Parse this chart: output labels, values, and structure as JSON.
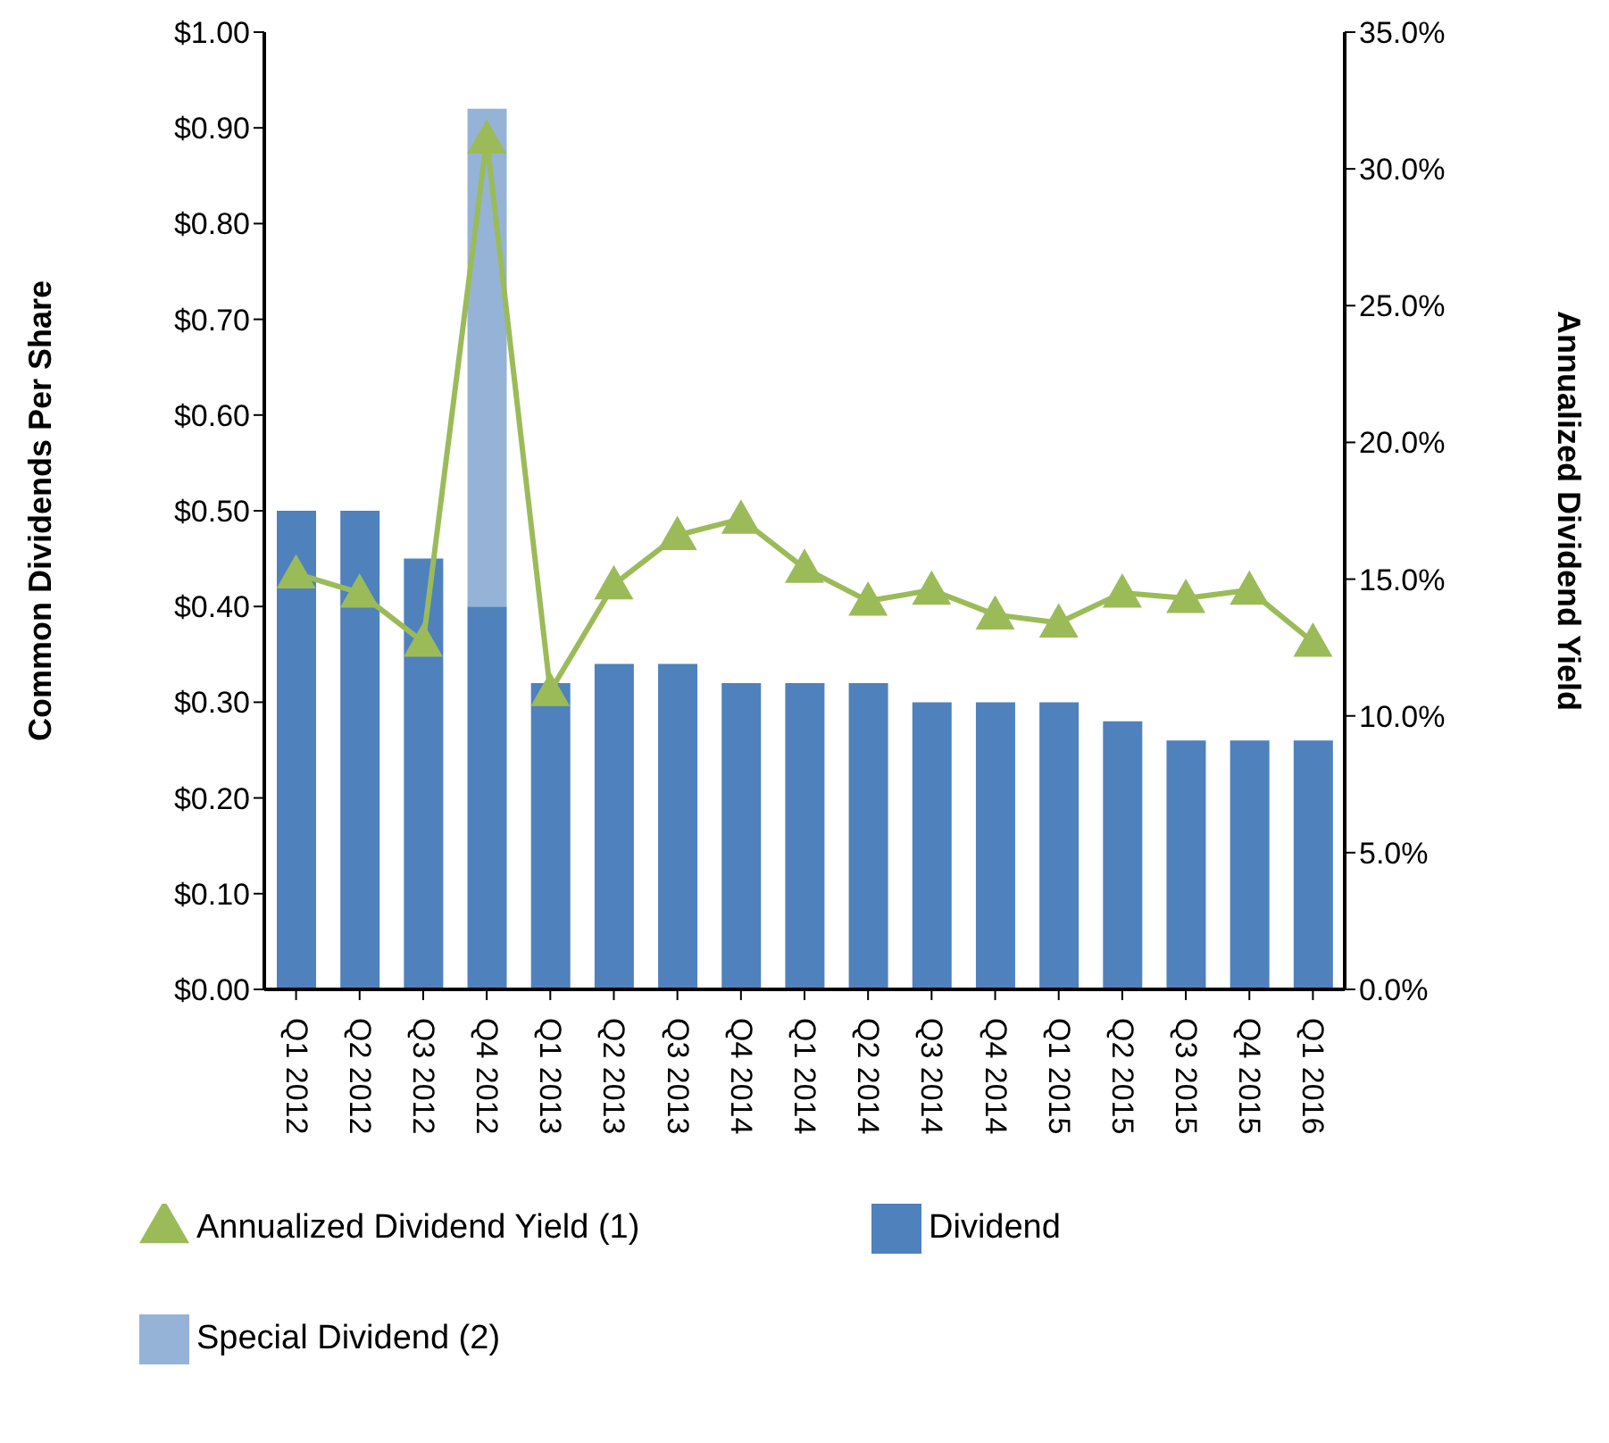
{
  "chart_data": {
    "type": "bar",
    "stacked": true,
    "categories": [
      "Q1 2012",
      "Q2 2012",
      "Q3 2012",
      "Q4 2012",
      "Q1 2013",
      "Q2 2013",
      "Q3 2013",
      "Q4 2014",
      "Q1 2014",
      "Q2 2014",
      "Q3 2014",
      "Q4 2014",
      "Q1 2015",
      "Q2 2015",
      "Q3 2015",
      "Q4 2015",
      "Q1 2016"
    ],
    "series": [
      {
        "name": "Dividend",
        "color": "#4f81bd",
        "values": [
          0.5,
          0.5,
          0.45,
          0.4,
          0.32,
          0.34,
          0.34,
          0.32,
          0.32,
          0.32,
          0.3,
          0.3,
          0.3,
          0.28,
          0.26,
          0.26,
          0.26
        ]
      },
      {
        "name": "Special Dividend (2)",
        "color": "#95b3d7",
        "values": [
          null,
          null,
          null,
          0.52,
          null,
          null,
          null,
          null,
          null,
          null,
          null,
          null,
          null,
          null,
          null,
          null,
          null
        ]
      },
      {
        "name": "Annualized Dividend Yield (1)",
        "type": "line",
        "axis": "y2",
        "marker": "triangle",
        "color": "#9bbb59",
        "values": [
          15.2,
          14.5,
          12.7,
          31.1,
          10.9,
          14.8,
          16.6,
          17.2,
          15.4,
          14.2,
          14.6,
          13.7,
          13.4,
          14.5,
          14.3,
          14.6,
          12.7
        ]
      }
    ],
    "ylabel": "Common Dividends Per Share",
    "y2label": "Annualized Dividend Yield",
    "ylim": [
      0,
      1
    ],
    "yticks": [
      {
        "value": 0,
        "label": "$0.00"
      },
      {
        "value": 0.1,
        "label": "$0.10"
      },
      {
        "value": 0.2,
        "label": "$0.20"
      },
      {
        "value": 0.3,
        "label": "$0.30"
      },
      {
        "value": 0.4,
        "label": "$0.40"
      },
      {
        "value": 0.5,
        "label": "$0.50"
      },
      {
        "value": 0.6,
        "label": "$0.60"
      },
      {
        "value": 0.7,
        "label": "$0.70"
      },
      {
        "value": 0.8,
        "label": "$0.80"
      },
      {
        "value": 0.9,
        "label": "$0.90"
      },
      {
        "value": 1,
        "label": "$1.00"
      }
    ],
    "y2lim": [
      0,
      35
    ],
    "y2ticks": [
      {
        "value": 0,
        "label": "0.0%"
      },
      {
        "value": 5,
        "label": "5.0%"
      },
      {
        "value": 10,
        "label": "10.0%"
      },
      {
        "value": 15,
        "label": "15.0%"
      },
      {
        "value": 20,
        "label": "20.0%"
      },
      {
        "value": 25,
        "label": "25.0%"
      },
      {
        "value": 30,
        "label": "30.0%"
      },
      {
        "value": 35,
        "label": "35.0%"
      }
    ],
    "grid": false,
    "legend": "bottom"
  }
}
